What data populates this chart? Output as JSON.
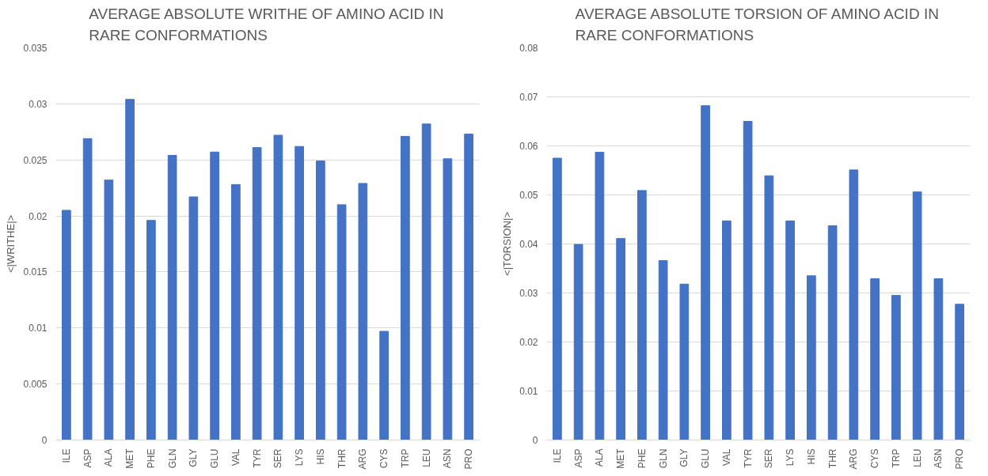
{
  "chart_data": [
    {
      "type": "bar",
      "title": "AVERAGE ABSOLUTE WRITHE OF AMINO ACID IN RARE CONFORMATIONS",
      "ylabel": "<|WRITHE|>",
      "categories": [
        "ILE",
        "ASP",
        "ALA",
        "MET",
        "PHE",
        "GLN",
        "GLY",
        "GLU",
        "VAL",
        "TYR",
        "SER",
        "LYS",
        "HIS",
        "THR",
        "ARG",
        "CYS",
        "TRP",
        "LEU",
        "ASN",
        "PRO"
      ],
      "values": [
        0.0205,
        0.0269,
        0.0232,
        0.0304,
        0.0196,
        0.0254,
        0.0217,
        0.0257,
        0.0228,
        0.0261,
        0.0272,
        0.0262,
        0.0249,
        0.021,
        0.0229,
        0.0097,
        0.0271,
        0.0282,
        0.0251,
        0.0273
      ],
      "color": "#4472c4",
      "ylim": [
        0,
        0.035
      ],
      "yticks": [
        0,
        0.005,
        0.01,
        0.015,
        0.02,
        0.025,
        0.03,
        0.035
      ],
      "grid": "y"
    },
    {
      "type": "bar",
      "title": "AVERAGE ABSOLUTE TORSION OF AMINO ACID IN RARE CONFORMATIONS",
      "ylabel": "<|TORSION|>",
      "categories": [
        "ILE",
        "ASP",
        "ALA",
        "MET",
        "PHE",
        "GLN",
        "GLY",
        "GLU",
        "VAL",
        "TYR",
        "SER",
        "LYS",
        "HIS",
        "THR",
        "ARG",
        "CYS",
        "TRP",
        "LEU",
        "ASN",
        "PRO"
      ],
      "values": [
        0.0575,
        0.0399,
        0.0587,
        0.0411,
        0.0509,
        0.0366,
        0.0318,
        0.0682,
        0.0447,
        0.065,
        0.0539,
        0.0447,
        0.0335,
        0.0437,
        0.0551,
        0.0329,
        0.0295,
        0.0506,
        0.0329,
        0.0277
      ],
      "color": "#4472c4",
      "ylim": [
        0,
        0.08
      ],
      "yticks": [
        0,
        0.01,
        0.02,
        0.03,
        0.04,
        0.05,
        0.06,
        0.07,
        0.08
      ],
      "grid": "y"
    }
  ]
}
